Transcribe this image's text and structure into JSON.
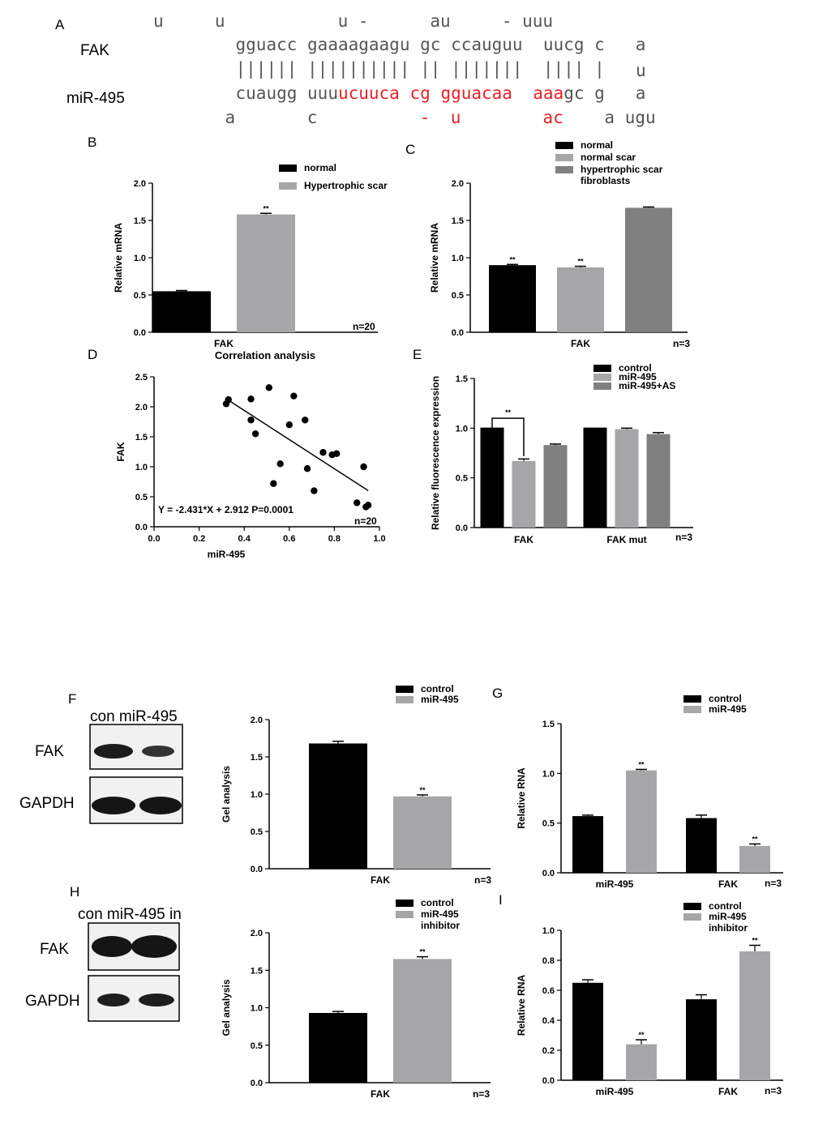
{
  "panel_labels": {
    "A": "A",
    "B": "B",
    "C": "C",
    "D": "D",
    "E": "E",
    "F": "F",
    "G": "G",
    "H": "H",
    "I": "I"
  },
  "panel_a": {
    "fak_label": "FAK",
    "mir_label": "miR-495",
    "top_line": "u     u           u -      au     - uuu",
    "fak_seq": [
      "gguacc",
      "gaaaagaagu",
      "gc",
      "ccauguu",
      "uucg",
      "c",
      "a"
    ],
    "bonds": [
      "||||||",
      "||||||||||",
      "||",
      "|||||||",
      "||||",
      "|"
    ],
    "loop": "u",
    "mir_seq": [
      {
        "t": "cuaugg",
        "c": "#555555"
      },
      {
        "t": "uuu",
        "c": "#555555"
      },
      {
        "t": "ucuuca",
        "c": "#e8212a"
      },
      {
        "t": "cg",
        "c": "#e8212a"
      },
      {
        "t": "gguacaa",
        "c": "#e8212a"
      },
      {
        "t": "aaa",
        "c": "#e8212a"
      },
      {
        "t": "gc",
        "c": "#555555"
      },
      {
        "t": "g",
        "c": "#555555"
      },
      {
        "t": "a",
        "c": "#555555"
      }
    ],
    "bottom_line": [
      {
        "t": "a",
        "c": "#555555"
      },
      {
        "t": "c",
        "c": "#555555"
      },
      {
        "t": "-",
        "c": "#e8212a"
      },
      {
        "t": "u",
        "c": "#e8212a"
      },
      {
        "t": "ac",
        "c": "#e8212a"
      },
      {
        "t": "a ugu",
        "c": "#555555"
      }
    ]
  },
  "colors": {
    "black": "#000000",
    "light_gray": "#a6a6a8",
    "dark_gray": "#808080"
  },
  "blots": {
    "F": {
      "header": "con miR-495",
      "rows": [
        "FAK",
        "GAPDH"
      ]
    },
    "H": {
      "header": "con miR-495 in",
      "rows": [
        "FAK",
        "GAPDH"
      ]
    }
  },
  "chart_data": [
    {
      "id": "B",
      "type": "bar",
      "ylabel": "Relative mRNA",
      "ylim": [
        0,
        2.0
      ],
      "yticks": [
        "0.0",
        "0.5",
        "1.0",
        "1.5",
        "2.0"
      ],
      "categories": [
        "FAK"
      ],
      "n_label": "n=20",
      "legend": "top-right",
      "series": [
        {
          "name": "normal",
          "color": "#000000",
          "values": [
            0.55
          ],
          "err": [
            0.01
          ],
          "sig": [
            ""
          ]
        },
        {
          "name": "Hypertrophic scar",
          "color": "#a6a6a8",
          "values": [
            1.58
          ],
          "err": [
            0.015
          ],
          "sig": [
            "**"
          ]
        }
      ]
    },
    {
      "id": "C",
      "type": "bar",
      "ylabel": "Relative mRNA",
      "ylim": [
        0,
        2.0
      ],
      "yticks": [
        "0.0",
        "0.5",
        "1.0",
        "1.5",
        "2.0"
      ],
      "categories": [
        "FAK"
      ],
      "n_label": "n=3",
      "legend": "top",
      "series": [
        {
          "name": "normal",
          "color": "#000000",
          "values": [
            0.9
          ],
          "err": [
            0.01
          ],
          "sig": [
            "**"
          ]
        },
        {
          "name": "normal scar",
          "color": "#a6a6a8",
          "values": [
            0.87
          ],
          "err": [
            0.015
          ],
          "sig": [
            "**"
          ]
        },
        {
          "name": "hypertrophic scar fibroblasts",
          "color": "#808080",
          "values": [
            1.67
          ],
          "err": [
            0.01
          ],
          "sig": [
            ""
          ]
        }
      ]
    },
    {
      "id": "D",
      "type": "scatter",
      "title": "Correlation analysis",
      "xlabel": "miR-495",
      "ylabel": "FAK",
      "xlim": [
        0,
        1.0
      ],
      "ylim": [
        0,
        2.5
      ],
      "xticks": [
        "0.0",
        "0.2",
        "0.4",
        "0.6",
        "0.8",
        "1.0"
      ],
      "yticks": [
        "0.0",
        "0.5",
        "1.0",
        "1.5",
        "2.0",
        "2.5"
      ],
      "equation": "Y = -2.431*X + 2.912 P=0.0001",
      "n_label": "n=20",
      "fit": {
        "slope": -2.431,
        "intercept": 2.912,
        "x_range": [
          0.33,
          0.95
        ]
      },
      "points": [
        [
          0.32,
          2.05
        ],
        [
          0.33,
          2.12
        ],
        [
          0.43,
          2.13
        ],
        [
          0.43,
          1.78
        ],
        [
          0.45,
          1.55
        ],
        [
          0.51,
          2.32
        ],
        [
          0.53,
          0.72
        ],
        [
          0.56,
          1.05
        ],
        [
          0.6,
          1.7
        ],
        [
          0.62,
          2.18
        ],
        [
          0.67,
          1.78
        ],
        [
          0.68,
          0.97
        ],
        [
          0.71,
          0.6
        ],
        [
          0.75,
          1.24
        ],
        [
          0.79,
          1.2
        ],
        [
          0.81,
          1.22
        ],
        [
          0.9,
          0.4
        ],
        [
          0.93,
          1.0
        ],
        [
          0.94,
          0.33
        ],
        [
          0.95,
          0.36
        ]
      ]
    },
    {
      "id": "E",
      "type": "bar",
      "ylabel": "Relative fluorescence expression",
      "ylim": [
        0,
        1.5
      ],
      "yticks": [
        "0.0",
        "0.5",
        "1.0",
        "1.5"
      ],
      "categories": [
        "FAK",
        "FAK mut"
      ],
      "n_label": "n=3",
      "legend": "top-right",
      "bracket": {
        "label": "**",
        "category": 0,
        "from": 0,
        "to": 1
      },
      "series": [
        {
          "name": "control",
          "color": "#000000",
          "values": [
            1.0,
            1.0
          ],
          "err": [
            0,
            0
          ],
          "sig": [
            "",
            ""
          ]
        },
        {
          "name": "miR-495",
          "color": "#a6a6a8",
          "values": [
            0.67,
            0.99
          ],
          "err": [
            0.02,
            0.01
          ],
          "sig": [
            "",
            ""
          ]
        },
        {
          "name": "miR-495+AS",
          "color": "#808080",
          "values": [
            0.83,
            0.94
          ],
          "err": [
            0.01,
            0.015
          ],
          "sig": [
            "",
            ""
          ]
        }
      ]
    },
    {
      "id": "F",
      "type": "bar",
      "ylabel": "Gel analysis",
      "ylim": [
        0,
        2.0
      ],
      "yticks": [
        "0.0",
        "0.5",
        "1.0",
        "1.5",
        "2.0"
      ],
      "categories": [
        "FAK"
      ],
      "n_label": "n=3",
      "legend": "top-right",
      "series": [
        {
          "name": "control",
          "color": "#000000",
          "values": [
            1.68
          ],
          "err": [
            0.03
          ],
          "sig": [
            ""
          ]
        },
        {
          "name": "miR-495",
          "color": "#a6a6a8",
          "values": [
            0.97
          ],
          "err": [
            0.02
          ],
          "sig": [
            "**"
          ]
        }
      ]
    },
    {
      "id": "G",
      "type": "bar",
      "ylabel": "Relative RNA",
      "ylim": [
        0,
        1.5
      ],
      "yticks": [
        "0.0",
        "0.5",
        "1.0",
        "1.5"
      ],
      "categories": [
        "miR-495",
        "FAK"
      ],
      "n_label": "n=3",
      "legend": "top-right",
      "series": [
        {
          "name": "control",
          "color": "#000000",
          "values": [
            0.57,
            0.55
          ],
          "err": [
            0.01,
            0.03
          ],
          "sig": [
            "",
            ""
          ]
        },
        {
          "name": "miR-495",
          "color": "#a6a6a8",
          "values": [
            1.03,
            0.27
          ],
          "err": [
            0.01,
            0.02
          ],
          "sig": [
            "**",
            "**"
          ]
        }
      ]
    },
    {
      "id": "H",
      "type": "bar",
      "ylabel": "Gel analysis",
      "ylim": [
        0,
        2.0
      ],
      "yticks": [
        "0.0",
        "0.5",
        "1.0",
        "1.5",
        "2.0"
      ],
      "categories": [
        "FAK"
      ],
      "n_label": "n=3",
      "legend": "top-right",
      "series": [
        {
          "name": "control",
          "color": "#000000",
          "values": [
            0.93
          ],
          "err": [
            0.02
          ],
          "sig": [
            ""
          ]
        },
        {
          "name": "miR-495 inhibitor",
          "color": "#a6a6a8",
          "values": [
            1.65
          ],
          "err": [
            0.03
          ],
          "sig": [
            "**"
          ]
        }
      ]
    },
    {
      "id": "I",
      "type": "bar",
      "ylabel": "Relative RNA",
      "ylim": [
        0,
        1.0
      ],
      "yticks": [
        "0.0",
        "0.2",
        "0.4",
        "0.6",
        "0.8",
        "1.0"
      ],
      "categories": [
        "miR-495",
        "FAK"
      ],
      "n_label": "n=3",
      "legend": "top-right",
      "series": [
        {
          "name": "control",
          "color": "#000000",
          "values": [
            0.65,
            0.54
          ],
          "err": [
            0.02,
            0.03
          ],
          "sig": [
            "",
            ""
          ]
        },
        {
          "name": "miR-495 inhibitor",
          "color": "#a6a6a8",
          "values": [
            0.24,
            0.86
          ],
          "err": [
            0.03,
            0.04
          ],
          "sig": [
            "**",
            "**"
          ]
        }
      ]
    }
  ]
}
